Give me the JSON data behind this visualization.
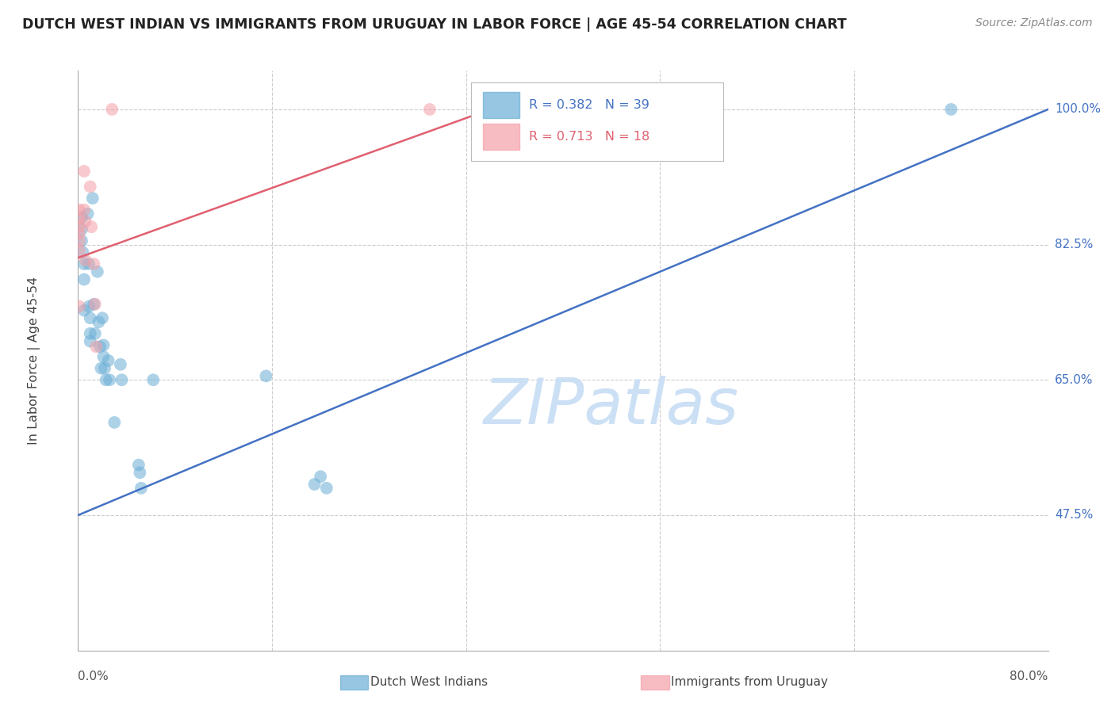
{
  "title": "DUTCH WEST INDIAN VS IMMIGRANTS FROM URUGUAY IN LABOR FORCE | AGE 45-54 CORRELATION CHART",
  "source": "Source: ZipAtlas.com",
  "ylabel": "In Labor Force | Age 45-54",
  "x_min": 0.0,
  "x_max": 0.8,
  "y_min": 0.3,
  "y_max": 1.05,
  "y_ticks": [
    0.475,
    0.65,
    0.825,
    1.0
  ],
  "y_tick_labels": [
    "47.5%",
    "65.0%",
    "82.5%",
    "100.0%"
  ],
  "x_ticks": [
    0.0,
    0.16,
    0.32,
    0.48,
    0.64,
    0.8
  ],
  "blue_R": 0.382,
  "blue_N": 39,
  "pink_R": 0.713,
  "pink_N": 18,
  "blue_color": "#6baed6",
  "pink_color": "#f4a0a8",
  "blue_line_color": "#4472c4",
  "pink_line_color": "#e06070",
  "legend_blue_label": "Dutch West Indians",
  "legend_pink_label": "Immigrants from Uruguay",
  "blue_points_x": [
    0.003,
    0.003,
    0.003,
    0.004,
    0.005,
    0.005,
    0.005,
    0.008,
    0.009,
    0.009,
    0.01,
    0.01,
    0.01,
    0.012,
    0.013,
    0.014,
    0.016,
    0.017,
    0.018,
    0.019,
    0.02,
    0.021,
    0.021,
    0.022,
    0.023,
    0.025,
    0.026,
    0.03,
    0.035,
    0.036,
    0.05,
    0.051,
    0.052,
    0.062,
    0.155,
    0.195,
    0.2,
    0.205,
    0.72
  ],
  "blue_points_y": [
    0.86,
    0.845,
    0.83,
    0.815,
    0.8,
    0.78,
    0.74,
    0.865,
    0.8,
    0.745,
    0.73,
    0.71,
    0.7,
    0.885,
    0.748,
    0.71,
    0.79,
    0.725,
    0.693,
    0.665,
    0.73,
    0.695,
    0.68,
    0.665,
    0.65,
    0.675,
    0.65,
    0.595,
    0.67,
    0.65,
    0.54,
    0.53,
    0.51,
    0.65,
    0.655,
    0.515,
    0.525,
    0.51,
    1.0
  ],
  "pink_points_x": [
    0.001,
    0.001,
    0.001,
    0.001,
    0.001,
    0.001,
    0.001,
    0.005,
    0.005,
    0.006,
    0.006,
    0.01,
    0.011,
    0.013,
    0.014,
    0.015,
    0.028,
    0.29
  ],
  "pink_points_y": [
    0.87,
    0.858,
    0.848,
    0.84,
    0.83,
    0.818,
    0.745,
    0.92,
    0.87,
    0.855,
    0.805,
    0.9,
    0.848,
    0.8,
    0.748,
    0.693,
    1.0,
    1.0
  ],
  "blue_line_x": [
    0.0,
    0.8
  ],
  "blue_line_y": [
    0.475,
    1.0
  ],
  "pink_line_x": [
    0.0,
    0.34
  ],
  "pink_line_y": [
    0.808,
    1.0
  ],
  "watermark_text": "ZIPatlas",
  "watermark_color": "#cce0f5",
  "background_color": "#ffffff",
  "grid_color": "#cccccc",
  "right_label_color": "#4472c4",
  "bottom_label_color": "#555555"
}
